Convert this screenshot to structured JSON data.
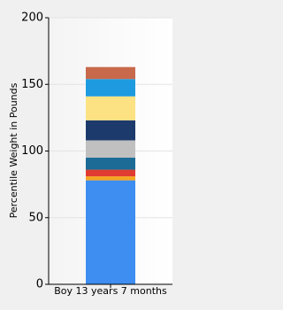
{
  "chart_data": {
    "type": "stacked_bar",
    "ylabel": "Percentile Weight in Pounds",
    "categories": [
      "Boy 13 years 7 months"
    ],
    "series": [
      {
        "color": "#3d8ef0",
        "values": [
          78
        ]
      },
      {
        "color": "#f5a623",
        "values": [
          3
        ]
      },
      {
        "color": "#e03c31",
        "values": [
          5
        ]
      },
      {
        "color": "#1b6b96",
        "values": [
          9
        ]
      },
      {
        "color": "#c0c0c0",
        "values": [
          13
        ]
      },
      {
        "color": "#1c3a6b",
        "values": [
          15
        ]
      },
      {
        "color": "#fde283",
        "values": [
          18
        ]
      },
      {
        "color": "#1e9be0",
        "values": [
          13
        ]
      },
      {
        "color": "#c8694c",
        "values": [
          9
        ]
      }
    ],
    "ylim": [
      0,
      200
    ],
    "yticks": [
      0,
      50,
      100,
      150,
      200
    ],
    "grid": true
  }
}
